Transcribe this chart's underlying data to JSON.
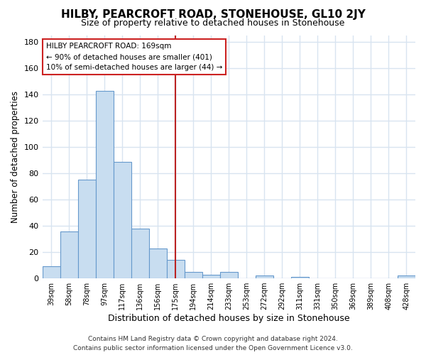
{
  "title": "HILBY, PEARCROFT ROAD, STONEHOUSE, GL10 2JY",
  "subtitle": "Size of property relative to detached houses in Stonehouse",
  "xlabel": "Distribution of detached houses by size in Stonehouse",
  "ylabel": "Number of detached properties",
  "bar_labels": [
    "39sqm",
    "58sqm",
    "78sqm",
    "97sqm",
    "117sqm",
    "136sqm",
    "156sqm",
    "175sqm",
    "194sqm",
    "214sqm",
    "233sqm",
    "253sqm",
    "272sqm",
    "292sqm",
    "311sqm",
    "331sqm",
    "350sqm",
    "369sqm",
    "389sqm",
    "408sqm",
    "428sqm"
  ],
  "bar_values": [
    9,
    36,
    75,
    143,
    89,
    38,
    23,
    14,
    5,
    3,
    5,
    0,
    2,
    0,
    1,
    0,
    0,
    0,
    0,
    0,
    2
  ],
  "bar_color": "#c8ddf0",
  "bar_edge_color": "#6699cc",
  "vline_index": 7,
  "vline_color": "#bb2222",
  "annotation_title": "HILBY PEARCROFT ROAD: 169sqm",
  "annotation_line1": "← 90% of detached houses are smaller (401)",
  "annotation_line2": "10% of semi-detached houses are larger (44) →",
  "annotation_box_facecolor": "#ffffff",
  "annotation_box_edgecolor": "#cc2222",
  "ylim": [
    0,
    185
  ],
  "yticks": [
    0,
    20,
    40,
    60,
    80,
    100,
    120,
    140,
    160,
    180
  ],
  "footer_line1": "Contains HM Land Registry data © Crown copyright and database right 2024.",
  "footer_line2": "Contains public sector information licensed under the Open Government Licence v3.0.",
  "background_color": "#ffffff",
  "grid_color": "#d8e4f0"
}
